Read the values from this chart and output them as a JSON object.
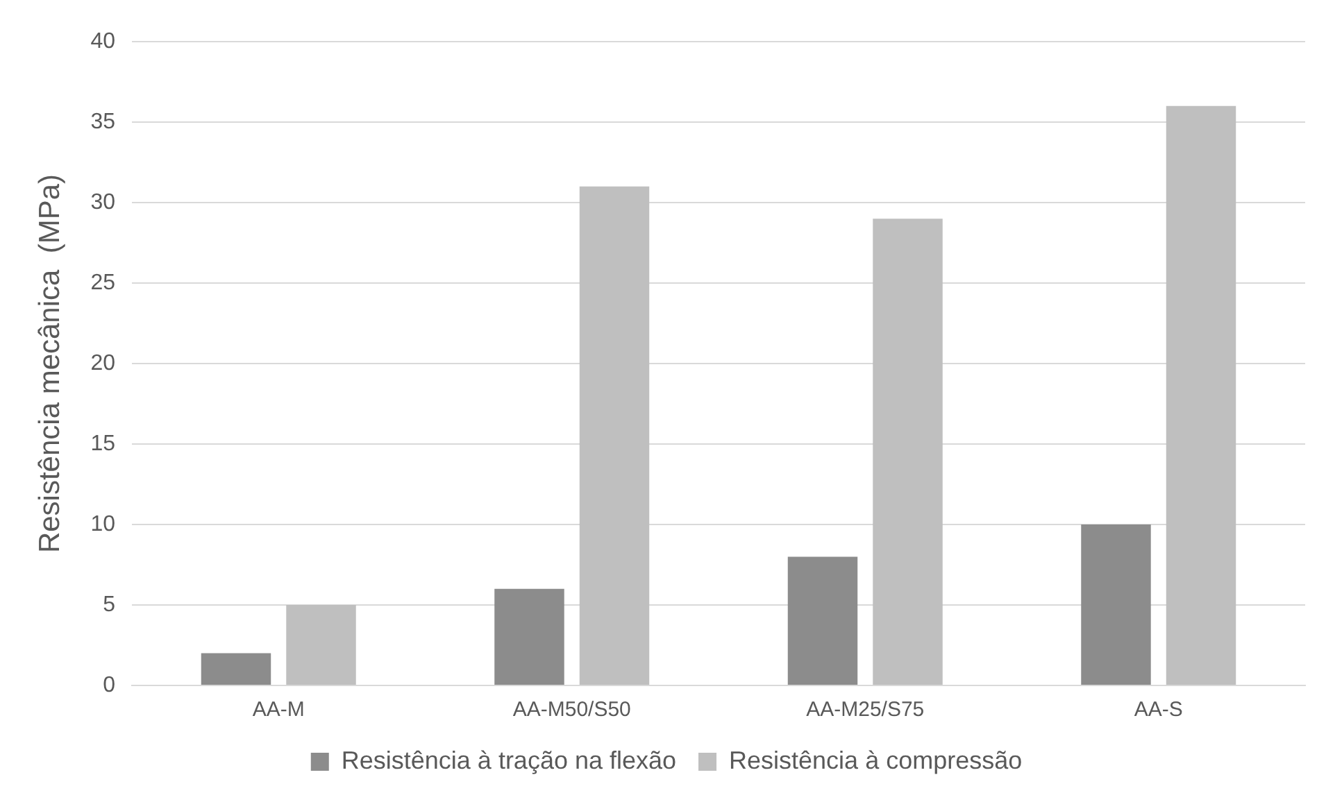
{
  "chart_data": {
    "type": "bar",
    "ylabel": "Resistência mecânica  (MPa)",
    "categories": [
      "AA-M",
      "AA-M50/S50",
      "AA-M25/S75",
      "AA-S"
    ],
    "series": [
      {
        "name": "Resistência à tração na flexão",
        "color": "#8c8c8c",
        "values": [
          2,
          6,
          8,
          10
        ]
      },
      {
        "name": "Resistência à compressão",
        "color": "#bfbfbf",
        "values": [
          5,
          31,
          29,
          36
        ]
      }
    ],
    "ylim": [
      0,
      40
    ],
    "yticks": [
      0,
      5,
      10,
      15,
      20,
      25,
      30,
      35,
      40
    ],
    "grid": "y",
    "legend": "bottom"
  }
}
